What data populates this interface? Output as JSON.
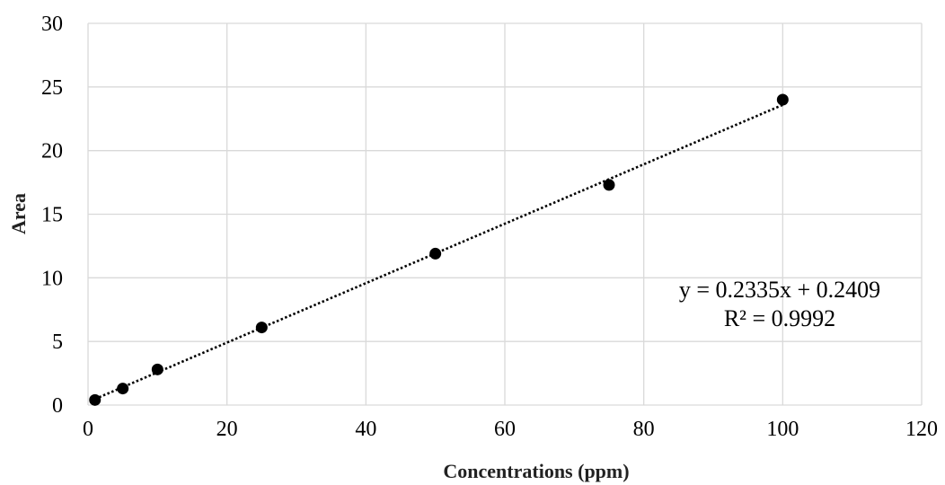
{
  "chart_data": {
    "type": "scatter",
    "title": "",
    "xlabel": "Concentrations (ppm)",
    "ylabel": "Area",
    "xlim": [
      0,
      120
    ],
    "ylim": [
      0,
      30
    ],
    "x_ticks": [
      0,
      20,
      40,
      60,
      80,
      100,
      120
    ],
    "y_ticks": [
      0,
      5,
      10,
      15,
      20,
      25,
      30
    ],
    "grid": true,
    "legend": "none",
    "series": [
      {
        "x": [
          1,
          5,
          10,
          25,
          50,
          75,
          100
        ],
        "y": [
          0.4,
          1.3,
          2.8,
          6.1,
          11.9,
          17.3,
          24.0
        ],
        "marker_color": "#000000"
      }
    ],
    "trendline": {
      "type": "linear",
      "slope": 0.2335,
      "intercept": 0.2409,
      "x_range": [
        1,
        100
      ],
      "style": "dotted",
      "color": "#000000"
    },
    "annotations": {
      "equation": "y = 0.2335x + 0.2409",
      "r_squared": "R² = 0.9992"
    },
    "grid_color": "#d9d9d9"
  }
}
